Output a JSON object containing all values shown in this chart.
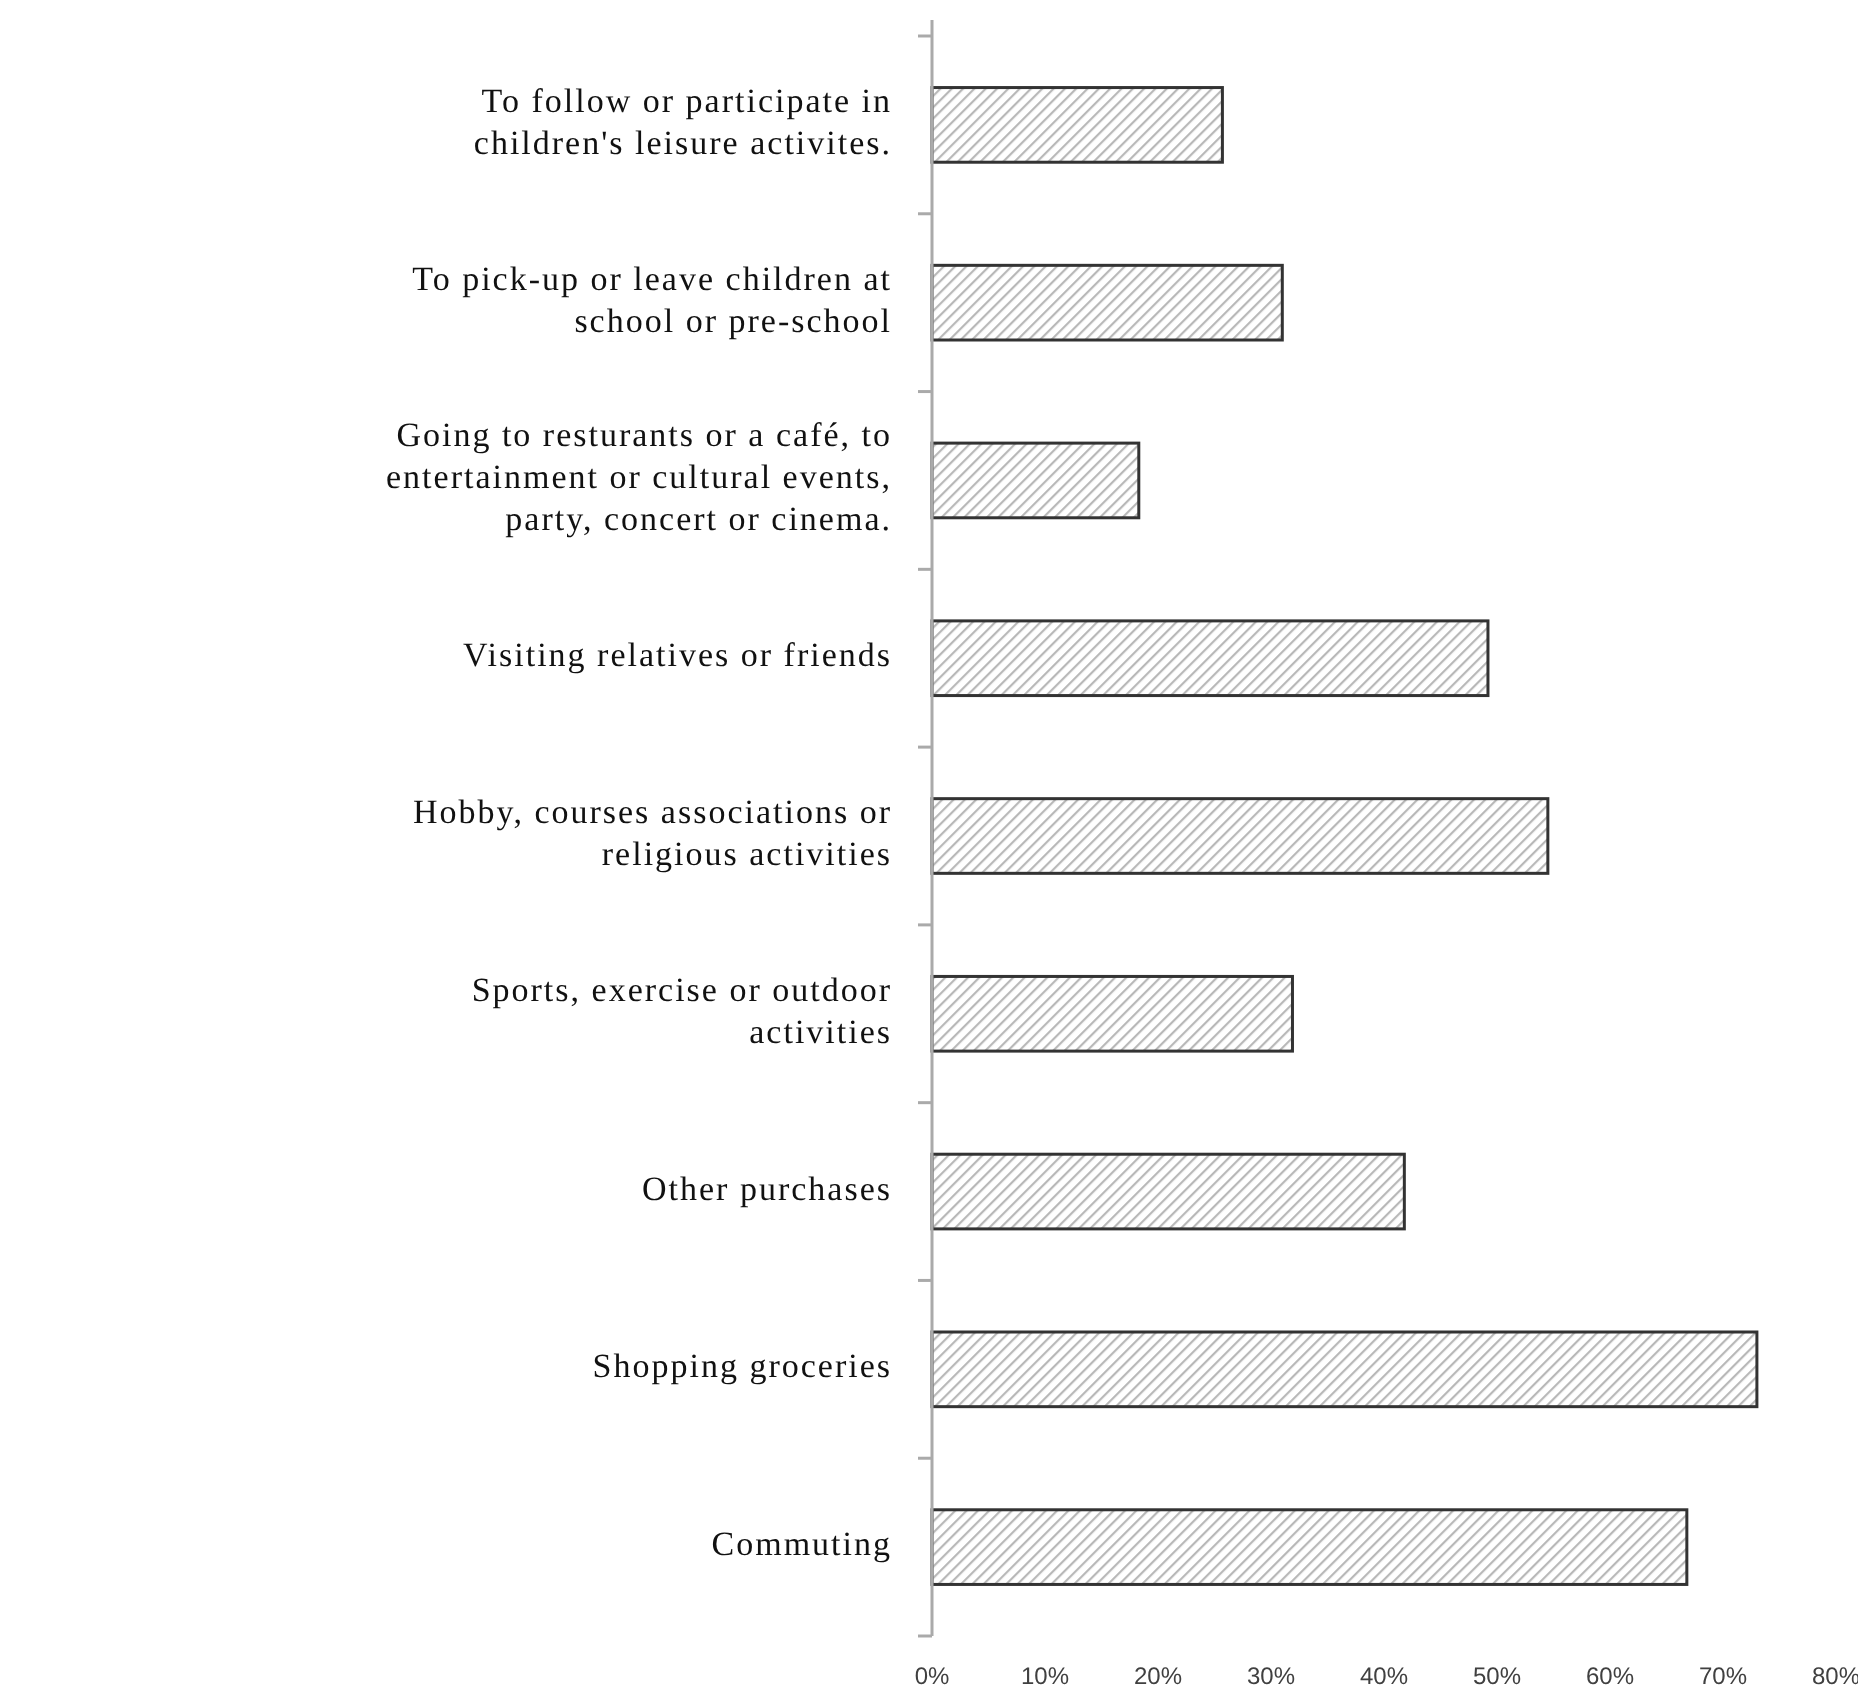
{
  "chart_data": {
    "type": "bar",
    "orientation": "horizontal",
    "categories": [
      "To follow or participate in children's leisure activites.",
      "To pick-up or leave children at school or pre-school",
      "Going to resturants or a café, to entertainment or cultural events, party, concert or cinema.",
      "Visiting relatives or friends",
      "Hobby, courses associations or religious activities",
      "Sports, exercise or outdoor activities",
      "Other purchases",
      "Shopping groceries",
      "Commuting"
    ],
    "values": [
      25.7,
      31,
      18.3,
      49.2,
      54.5,
      31.9,
      41.8,
      73,
      66.8
    ],
    "color": "#333333",
    "xlim": [
      0,
      80
    ],
    "xticks": [
      {
        "value": 0,
        "label": "0%"
      },
      {
        "value": 10,
        "label": "10%"
      },
      {
        "value": 20,
        "label": "20%"
      },
      {
        "value": 30,
        "label": "30%"
      },
      {
        "value": 40,
        "label": "40%"
      },
      {
        "value": 50,
        "label": "50%"
      },
      {
        "value": 60,
        "label": "60%"
      },
      {
        "value": 70,
        "label": "70%"
      },
      {
        "value": 80,
        "label": "80%"
      }
    ],
    "grid": false
  }
}
